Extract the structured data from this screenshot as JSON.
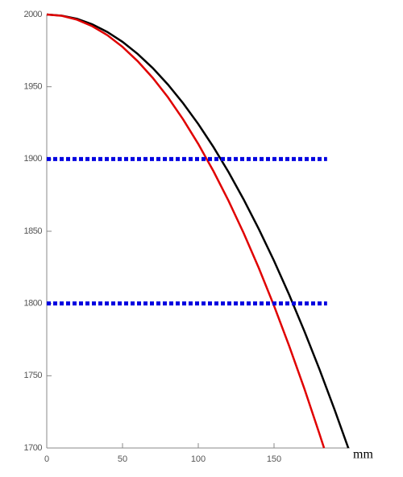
{
  "chart_data": {
    "type": "line",
    "x_label": "mm",
    "xlim": [
      0,
      200
    ],
    "ylim": [
      1700,
      2000
    ],
    "xticks": [
      0,
      50,
      100,
      150
    ],
    "yticks": [
      1700,
      1750,
      1800,
      1850,
      1900,
      1950,
      2000
    ],
    "series": [
      {
        "color": "#000000",
        "style": "solid",
        "x": [
          0,
          10,
          20,
          30,
          40,
          50,
          60,
          70,
          80,
          90,
          100,
          110,
          120,
          130,
          140,
          150,
          160,
          170,
          180,
          190,
          199
        ],
        "values": [
          2000,
          1999.2,
          1997,
          1993.2,
          1987.9,
          1981.1,
          1972.7,
          1962.9,
          1951.5,
          1938.6,
          1924.2,
          1908.3,
          1890.9,
          1871.9,
          1851.4,
          1829.5,
          1806,
          1780.9,
          1754.4,
          1726.4,
          1700
        ]
      },
      {
        "color": "#e00000",
        "style": "solid",
        "x": [
          0,
          10,
          20,
          30,
          40,
          50,
          60,
          70,
          80,
          90,
          100,
          110,
          120,
          130,
          140,
          150,
          160,
          170,
          180,
          183
        ],
        "values": [
          2000,
          1999.1,
          1996.4,
          1991.9,
          1985.7,
          1977.6,
          1967.7,
          1956.1,
          1942.7,
          1927.4,
          1910.4,
          1891.6,
          1871,
          1848.6,
          1824.4,
          1798.4,
          1770.6,
          1741.1,
          1709.7,
          1700
        ]
      },
      {
        "color": "#0000e0",
        "style": "dotted",
        "x": [
          0,
          185
        ],
        "values": [
          1900,
          1900
        ]
      },
      {
        "color": "#0000e0",
        "style": "dotted",
        "x": [
          0,
          185
        ],
        "values": [
          1800,
          1800
        ]
      }
    ]
  }
}
